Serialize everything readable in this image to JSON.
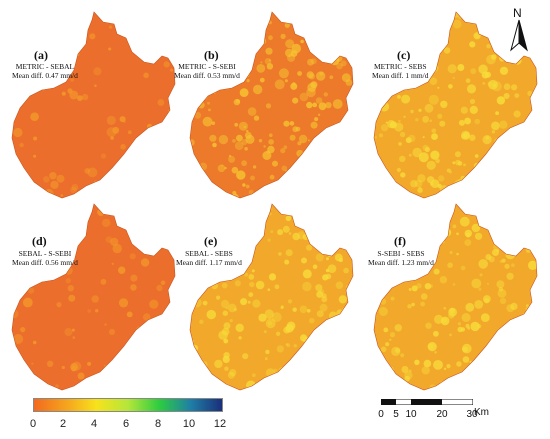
{
  "panels": [
    {
      "letter": "(a)",
      "line1": "METRIC - SEBAL",
      "line2": "Mean diff. 0.47 mm/d",
      "tone": "orange"
    },
    {
      "letter": "(b)",
      "line1": "METRIC - S-SEBI",
      "line2": "Mean diff. 0.53 mm/d",
      "tone": "mixed"
    },
    {
      "letter": "(c)",
      "line1": "METRIC - SEBS",
      "line2": "Mean diff. 1 mm/d",
      "tone": "yellow"
    },
    {
      "letter": "(d)",
      "line1": "SEBAL - S-SEBI",
      "line2": "Mean diff. 0.56 mm/d",
      "tone": "orange"
    },
    {
      "letter": "(e)",
      "line1": "SEBAL - SEBS",
      "line2": "Mean diff. 1.17 mm/d",
      "tone": "yellow"
    },
    {
      "letter": "(f)",
      "line1": "S-SEBI - SEBS",
      "line2": "Mean diff. 1.23 mm/d",
      "tone": "yellow"
    }
  ],
  "north_label": "N",
  "legend": {
    "ticks": [
      "0",
      "2",
      "4",
      "6",
      "8",
      "10",
      "12"
    ],
    "colors": [
      "#f26a1f",
      "#f5a21e",
      "#f7e21c",
      "#b5e63a",
      "#2ecc40",
      "#1f7fa6",
      "#1a2f7a"
    ]
  },
  "scale": {
    "labels": [
      "0",
      "5",
      "10",
      "20",
      "30"
    ],
    "unit": "Km"
  },
  "tones": {
    "orange": {
      "base": "#ec6e2c",
      "speck": "#f39a2a"
    },
    "mixed": {
      "base": "#ec7a2a",
      "speck": "#f6c431"
    },
    "yellow": {
      "base": "#f2a92b",
      "speck": "#f7dd3a"
    }
  }
}
